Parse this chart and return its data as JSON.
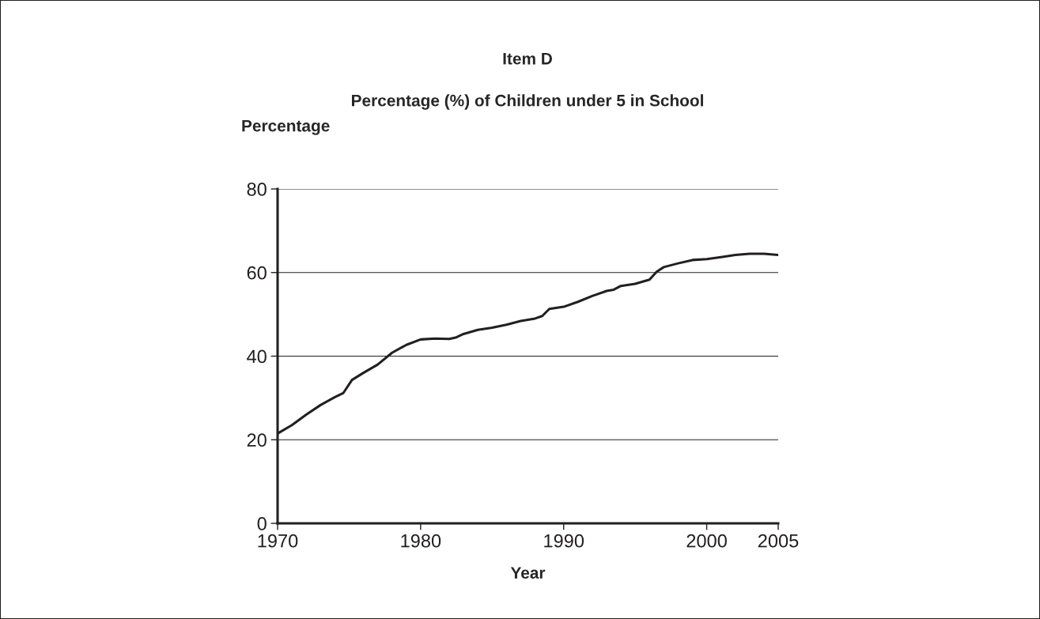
{
  "chart_data": {
    "type": "line",
    "title": "Item D",
    "subtitle": "Percentage (%) of Children under 5 in School",
    "xlabel": "Year",
    "ylabel": "Percentage",
    "x": [
      1970,
      1971,
      1972,
      1973,
      1974,
      1974.6,
      1975.2,
      1976,
      1977,
      1978,
      1979,
      1980,
      1981,
      1982,
      1982.5,
      1983,
      1984,
      1985,
      1986,
      1987,
      1988,
      1988.5,
      1989,
      1990,
      1991,
      1992,
      1993,
      1993.5,
      1994,
      1995,
      1996,
      1996.5,
      1997,
      1998,
      1999,
      2000,
      2001,
      2002,
      2003,
      2004,
      2005
    ],
    "series": [
      {
        "color": "#231f20",
        "values": [
          21.5,
          23.5,
          26,
          28.3,
          30.2,
          31.2,
          34.3,
          36,
          38,
          40.8,
          42.7,
          44,
          44.2,
          44.1,
          44.5,
          45.3,
          46.3,
          46.8,
          47.5,
          48.4,
          49.0,
          49.6,
          51.3,
          51.8,
          53,
          54.4,
          55.6,
          55.9,
          56.8,
          57.3,
          58.3,
          60.2,
          61.3,
          62.2,
          63,
          63.2,
          63.7,
          64.2,
          64.5,
          64.5,
          64.2
        ]
      }
    ],
    "xlim": [
      1970,
      2005
    ],
    "xticks": [
      1970,
      1980,
      1990,
      2000,
      2005
    ],
    "ylim": [
      0,
      80
    ],
    "yticks": [
      0,
      20,
      40,
      60,
      80
    ],
    "grid": "y",
    "marker": "none",
    "line_style": "solid"
  }
}
